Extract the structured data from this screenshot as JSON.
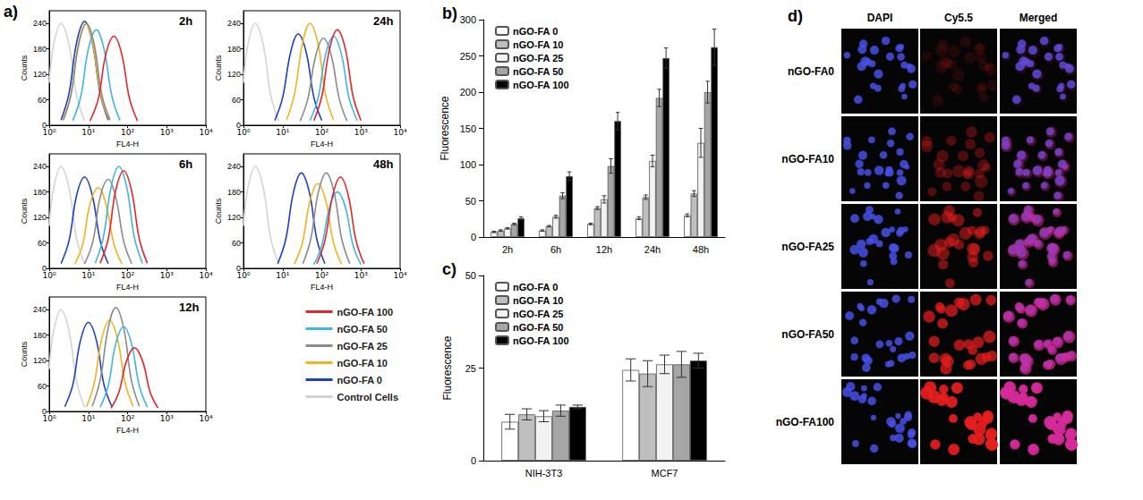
{
  "chart_data": [
    {
      "type": "line",
      "annotations": [
        "a)"
      ],
      "title": "2h",
      "x_label": "FL4-H",
      "y_label": "Counts",
      "log": "x",
      "xlim": [
        1,
        10000
      ],
      "xticks": [
        {
          "value": 1,
          "label": "10⁰"
        },
        {
          "value": 10,
          "label": "10¹"
        },
        {
          "value": 100,
          "label": "10²"
        },
        {
          "value": 1000,
          "label": "10³"
        },
        {
          "value": 10000,
          "label": "10⁴"
        }
      ],
      "ylim": [
        0,
        270
      ],
      "yticks": [
        0,
        60,
        120,
        180,
        240
      ],
      "grid": false,
      "legend": "lower right",
      "series": [
        {
          "name": "nGO-FA 100",
          "color": "#e8232a",
          "x": [
            11,
            18,
            28,
            45,
            71,
            112,
            180
          ],
          "values": [
            10,
            63,
            168,
            210,
            168,
            63,
            10
          ]
        },
        {
          "name": "nGO-FA 50",
          "color": "#3db5e6",
          "x": [
            4,
            6.4,
            10,
            16,
            25,
            40,
            64
          ],
          "values": [
            11,
            68,
            180,
            225,
            180,
            68,
            11
          ]
        },
        {
          "name": "nGO-FA 25",
          "color": "#8a8a8a",
          "x": [
            2.3,
            3.6,
            5.7,
            9,
            14,
            22,
            36
          ],
          "values": [
            12,
            72,
            192,
            240,
            192,
            72,
            12
          ]
        },
        {
          "name": "nGO-FA 10",
          "color": "#f2b21c",
          "x": [
            2.2,
            3.5,
            5.5,
            8.5,
            13,
            21,
            34
          ],
          "values": [
            12,
            70,
            190,
            240,
            190,
            70,
            12
          ]
        },
        {
          "name": "nGO-FA 0",
          "color": "#1c3fc4",
          "x": [
            2,
            3.2,
            5,
            8,
            12.6,
            20,
            32
          ],
          "values": [
            12,
            75,
            195,
            245,
            195,
            75,
            12
          ]
        },
        {
          "name": "Control Cells",
          "color": "#d3d3d3",
          "x": [
            1,
            1.3,
            2,
            3.2,
            5,
            8
          ],
          "values": [
            100,
            190,
            240,
            190,
            70,
            10
          ]
        }
      ]
    },
    {
      "type": "line",
      "title": "24h",
      "x_label": "FL4-H",
      "y_label": "Counts",
      "log": "x",
      "xlim": [
        1,
        10000
      ],
      "xticks": [
        {
          "value": 1,
          "label": "10⁰"
        },
        {
          "value": 10,
          "label": "10¹"
        },
        {
          "value": 100,
          "label": "10²"
        },
        {
          "value": 1000,
          "label": "10³"
        },
        {
          "value": 10000,
          "label": "10⁴"
        }
      ],
      "ylim": [
        0,
        270
      ],
      "yticks": [
        0,
        60,
        120,
        180,
        240
      ],
      "grid": false,
      "legend": "lower right",
      "series": [
        {
          "name": "nGO-FA 100",
          "color": "#e8232a",
          "x": [
            63,
            100,
            158,
            250,
            400,
            630,
            1000
          ],
          "values": [
            11,
            68,
            180,
            225,
            180,
            68,
            11
          ]
        },
        {
          "name": "nGO-FA 50",
          "color": "#3db5e6",
          "x": [
            50,
            80,
            126,
            200,
            316,
            500,
            800
          ],
          "values": [
            11,
            63,
            168,
            210,
            168,
            63,
            11
          ]
        },
        {
          "name": "nGO-FA 25",
          "color": "#8a8a8a",
          "x": [
            28,
            44,
            70,
            110,
            175,
            280,
            440
          ],
          "values": [
            10,
            62,
            164,
            205,
            164,
            62,
            10
          ]
        },
        {
          "name": "nGO-FA 10",
          "color": "#f2b21c",
          "x": [
            12.5,
            20,
            32,
            50,
            80,
            125,
            200
          ],
          "values": [
            12,
            72,
            192,
            240,
            192,
            72,
            12
          ]
        },
        {
          "name": "nGO-FA 0",
          "color": "#1c3fc4",
          "x": [
            6.3,
            10,
            16,
            25,
            40,
            63,
            100
          ],
          "values": [
            11,
            65,
            172,
            215,
            172,
            65,
            11
          ]
        },
        {
          "name": "Control Cells",
          "color": "#d3d3d3",
          "x": [
            1,
            1.3,
            2,
            3.2,
            5,
            8
          ],
          "values": [
            100,
            190,
            240,
            190,
            70,
            10
          ]
        }
      ]
    },
    {
      "type": "line",
      "title": "6h",
      "x_label": "FL4-H",
      "y_label": "Counts",
      "log": "x",
      "xlim": [
        1,
        10000
      ],
      "xticks": [
        {
          "value": 1,
          "label": "10⁰"
        },
        {
          "value": 10,
          "label": "10¹"
        },
        {
          "value": 100,
          "label": "10²"
        },
        {
          "value": 1000,
          "label": "10³"
        },
        {
          "value": 10000,
          "label": "10⁴"
        }
      ],
      "ylim": [
        0,
        270
      ],
      "yticks": [
        0,
        60,
        120,
        180,
        240
      ],
      "grid": false,
      "legend": "lower right",
      "series": [
        {
          "name": "nGO-FA 100",
          "color": "#e8232a",
          "x": [
            20,
            32,
            50,
            80,
            126,
            200,
            320
          ],
          "values": [
            12,
            69,
            184,
            230,
            184,
            69,
            12
          ]
        },
        {
          "name": "nGO-FA 50",
          "color": "#3db5e6",
          "x": [
            15,
            24,
            38,
            60,
            95,
            150,
            240
          ],
          "values": [
            12,
            72,
            192,
            240,
            192,
            72,
            12
          ]
        },
        {
          "name": "nGO-FA 25",
          "color": "#8a8a8a",
          "x": [
            8,
            13,
            20,
            32,
            50,
            80,
            128
          ],
          "values": [
            11,
            63,
            168,
            210,
            168,
            63,
            11
          ]
        },
        {
          "name": "nGO-FA 10",
          "color": "#f2b21c",
          "x": [
            4.5,
            7.2,
            11,
            18,
            28,
            45,
            72
          ],
          "values": [
            10,
            57,
            152,
            190,
            152,
            57,
            10
          ]
        },
        {
          "name": "nGO-FA 0",
          "color": "#1c3fc4",
          "x": [
            2,
            3.2,
            5,
            8,
            12.6,
            20,
            32
          ],
          "values": [
            11,
            65,
            172,
            215,
            172,
            65,
            11
          ]
        },
        {
          "name": "Control Cells",
          "color": "#d3d3d3",
          "x": [
            1,
            1.3,
            2,
            3.2,
            5,
            8
          ],
          "values": [
            100,
            190,
            240,
            190,
            70,
            10
          ]
        }
      ]
    },
    {
      "type": "line",
      "title": "48h",
      "x_label": "FL4-H",
      "y_label": "Counts",
      "log": "x",
      "xlim": [
        1,
        10000
      ],
      "xticks": [
        {
          "value": 1,
          "label": "10⁰"
        },
        {
          "value": 10,
          "label": "10¹"
        },
        {
          "value": 100,
          "label": "10²"
        },
        {
          "value": 1000,
          "label": "10³"
        },
        {
          "value": 10000,
          "label": "10⁴"
        }
      ],
      "ylim": [
        0,
        270
      ],
      "yticks": [
        0,
        60,
        120,
        180,
        240
      ],
      "grid": false,
      "legend": "lower right",
      "series": [
        {
          "name": "nGO-FA 100",
          "color": "#e8232a",
          "x": [
            75,
            120,
            190,
            300,
            475,
            750,
            1200
          ],
          "values": [
            11,
            65,
            172,
            215,
            172,
            65,
            11
          ]
        },
        {
          "name": "nGO-FA 50",
          "color": "#3db5e6",
          "x": [
            63,
            100,
            158,
            250,
            400,
            630,
            1000
          ],
          "values": [
            9,
            54,
            144,
            180,
            144,
            54,
            9
          ]
        },
        {
          "name": "nGO-FA 25",
          "color": "#8a8a8a",
          "x": [
            33,
            52,
            82,
            130,
            205,
            325,
            520
          ],
          "values": [
            11,
            68,
            180,
            225,
            180,
            68,
            11
          ]
        },
        {
          "name": "nGO-FA 10",
          "color": "#f2b21c",
          "x": [
            20,
            32,
            50,
            80,
            126,
            200,
            320
          ],
          "values": [
            10,
            60,
            160,
            200,
            160,
            60,
            10
          ]
        },
        {
          "name": "nGO-FA 0",
          "color": "#1c3fc4",
          "x": [
            7.5,
            12,
            19,
            30,
            48,
            75,
            120
          ],
          "values": [
            11,
            68,
            180,
            225,
            180,
            68,
            11
          ]
        },
        {
          "name": "Control Cells",
          "color": "#d3d3d3",
          "x": [
            1,
            1.3,
            2,
            3.2,
            5,
            8
          ],
          "values": [
            100,
            190,
            240,
            190,
            70,
            10
          ]
        }
      ]
    },
    {
      "type": "line",
      "title": "12h",
      "x_label": "FL4-H",
      "y_label": "Counts",
      "log": "x",
      "xlim": [
        1,
        10000
      ],
      "xticks": [
        {
          "value": 1,
          "label": "10⁰"
        },
        {
          "value": 10,
          "label": "10¹"
        },
        {
          "value": 100,
          "label": "10²"
        },
        {
          "value": 1000,
          "label": "10³"
        },
        {
          "value": 10000,
          "label": "10⁴"
        }
      ],
      "ylim": [
        0,
        270
      ],
      "yticks": [
        0,
        60,
        120,
        180,
        240
      ],
      "grid": false,
      "legend": "lower right",
      "series": [
        {
          "name": "nGO-FA 100",
          "color": "#e8232a",
          "x": [
            38,
            60,
            95,
            150,
            240,
            380,
            600
          ],
          "values": [
            8,
            45,
            120,
            150,
            120,
            45,
            8
          ]
        },
        {
          "name": "nGO-FA 50",
          "color": "#3db5e6",
          "x": [
            20,
            32,
            50,
            80,
            126,
            200,
            320
          ],
          "values": [
            10,
            60,
            160,
            200,
            160,
            60,
            10
          ]
        },
        {
          "name": "nGO-FA 25",
          "color": "#8a8a8a",
          "x": [
            12.5,
            20,
            32,
            50,
            80,
            125,
            200
          ],
          "values": [
            12,
            74,
            196,
            245,
            196,
            74,
            12
          ]
        },
        {
          "name": "nGO-FA 10",
          "color": "#f2b21c",
          "x": [
            9,
            14,
            22,
            35,
            55,
            88,
            140
          ],
          "values": [
            11,
            65,
            172,
            215,
            172,
            65,
            11
          ]
        },
        {
          "name": "nGO-FA 0",
          "color": "#1c3fc4",
          "x": [
            2.5,
            4,
            6.3,
            10,
            16,
            25,
            40
          ],
          "values": [
            11,
            63,
            168,
            210,
            168,
            63,
            11
          ]
        },
        {
          "name": "Control Cells",
          "color": "#d3d3d3",
          "x": [
            1,
            1.3,
            2,
            3.2,
            5,
            8
          ],
          "values": [
            100,
            190,
            240,
            190,
            70,
            10
          ]
        }
      ]
    },
    {
      "type": "bar",
      "annotations": [
        "b)"
      ],
      "y_label": "Fluorescence",
      "categories": [
        "2h",
        "6h",
        "12h",
        "24h",
        "48h"
      ],
      "ylim": [
        0,
        300
      ],
      "yticks": [
        0,
        50,
        100,
        150,
        200,
        250,
        300
      ],
      "grid": false,
      "legend": "upper left",
      "series": [
        {
          "name": "nGO-FA 0",
          "color": "#ffffff",
          "values": [
            7,
            9,
            18,
            26,
            30
          ],
          "errors": [
            1,
            1,
            1,
            2,
            2
          ]
        },
        {
          "name": "nGO-FA 10",
          "color": "#bfbfbf",
          "values": [
            9,
            15,
            40,
            55,
            60
          ],
          "errors": [
            1,
            1,
            2,
            3,
            4
          ]
        },
        {
          "name": "nGO-FA 25",
          "color": "#f2f2f2",
          "values": [
            12,
            28,
            52,
            105,
            130
          ],
          "errors": [
            1,
            2,
            5,
            8,
            20
          ]
        },
        {
          "name": "nGO-FA 50",
          "color": "#a6a6a6",
          "values": [
            18,
            57,
            98,
            192,
            200
          ],
          "errors": [
            1,
            4,
            10,
            12,
            15
          ]
        },
        {
          "name": "nGO-FA 100",
          "color": "#000000",
          "values": [
            26,
            84,
            160,
            247,
            262
          ],
          "errors": [
            2,
            6,
            12,
            14,
            25
          ]
        }
      ]
    },
    {
      "type": "bar",
      "annotations": [
        "c)"
      ],
      "y_label": "Fluorescence",
      "categories": [
        "NIH-3T3",
        "MCF7"
      ],
      "ylim": [
        0,
        50
      ],
      "yticks": [
        0,
        25,
        50
      ],
      "grid": false,
      "legend": "upper left",
      "series": [
        {
          "name": "nGO-FA 0",
          "color": "#ffffff",
          "values": [
            10.5,
            24.5
          ],
          "errors": [
            2,
            3
          ]
        },
        {
          "name": "nGO-FA 10",
          "color": "#bfbfbf",
          "values": [
            12.5,
            23.5
          ],
          "errors": [
            1.5,
            3.5
          ]
        },
        {
          "name": "nGO-FA 25",
          "color": "#f2f2f2",
          "values": [
            12,
            26
          ],
          "errors": [
            1.5,
            2.5
          ]
        },
        {
          "name": "nGO-FA 50",
          "color": "#a6a6a6",
          "values": [
            13.5,
            26
          ],
          "errors": [
            1.5,
            3.5
          ]
        },
        {
          "name": "nGO-FA 100",
          "color": "#000000",
          "values": [
            14.5,
            27
          ],
          "errors": [
            0.5,
            2
          ]
        }
      ]
    }
  ],
  "figure_d": {
    "label": "d)",
    "columns": [
      "DAPI",
      "Cy5.5",
      "Merged"
    ],
    "rows": [
      "nGO-FA0",
      "nGO-FA10",
      "nGO-FA25",
      "nGO-FA50",
      "nGO-FA100"
    ]
  }
}
